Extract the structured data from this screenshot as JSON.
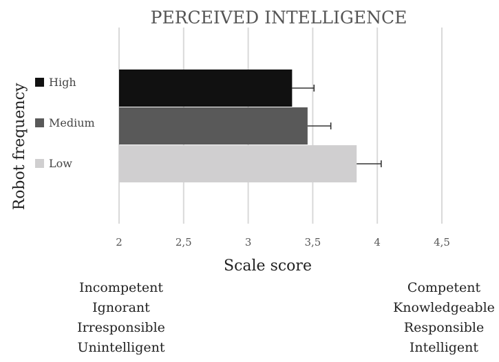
{
  "chart_data": {
    "type": "bar",
    "orientation": "horizontal",
    "title": "PERCEIVED INTELLIGENCE",
    "xlabel": "Scale score",
    "ylabel": "Robot frequency",
    "xlim": [
      2,
      5
    ],
    "xticks": [
      "2",
      "2,5",
      "3",
      "3,5",
      "4",
      "4,5"
    ],
    "grid": true,
    "legend_position": "left",
    "series": [
      {
        "name": "High",
        "value": 3.34,
        "error": 0.17,
        "color": "#111111"
      },
      {
        "name": "Medium",
        "value": 3.46,
        "error": 0.18,
        "color": "#595959"
      },
      {
        "name": "Low",
        "value": 3.84,
        "error": 0.19,
        "color": "#d0cfd0"
      }
    ]
  },
  "anchors": {
    "left": [
      "Incompetent",
      "Ignorant",
      "Irresponsible",
      "Unintelligent"
    ],
    "right": [
      "Competent",
      "Knowledgeable",
      "Responsible",
      "Intelligent"
    ]
  }
}
